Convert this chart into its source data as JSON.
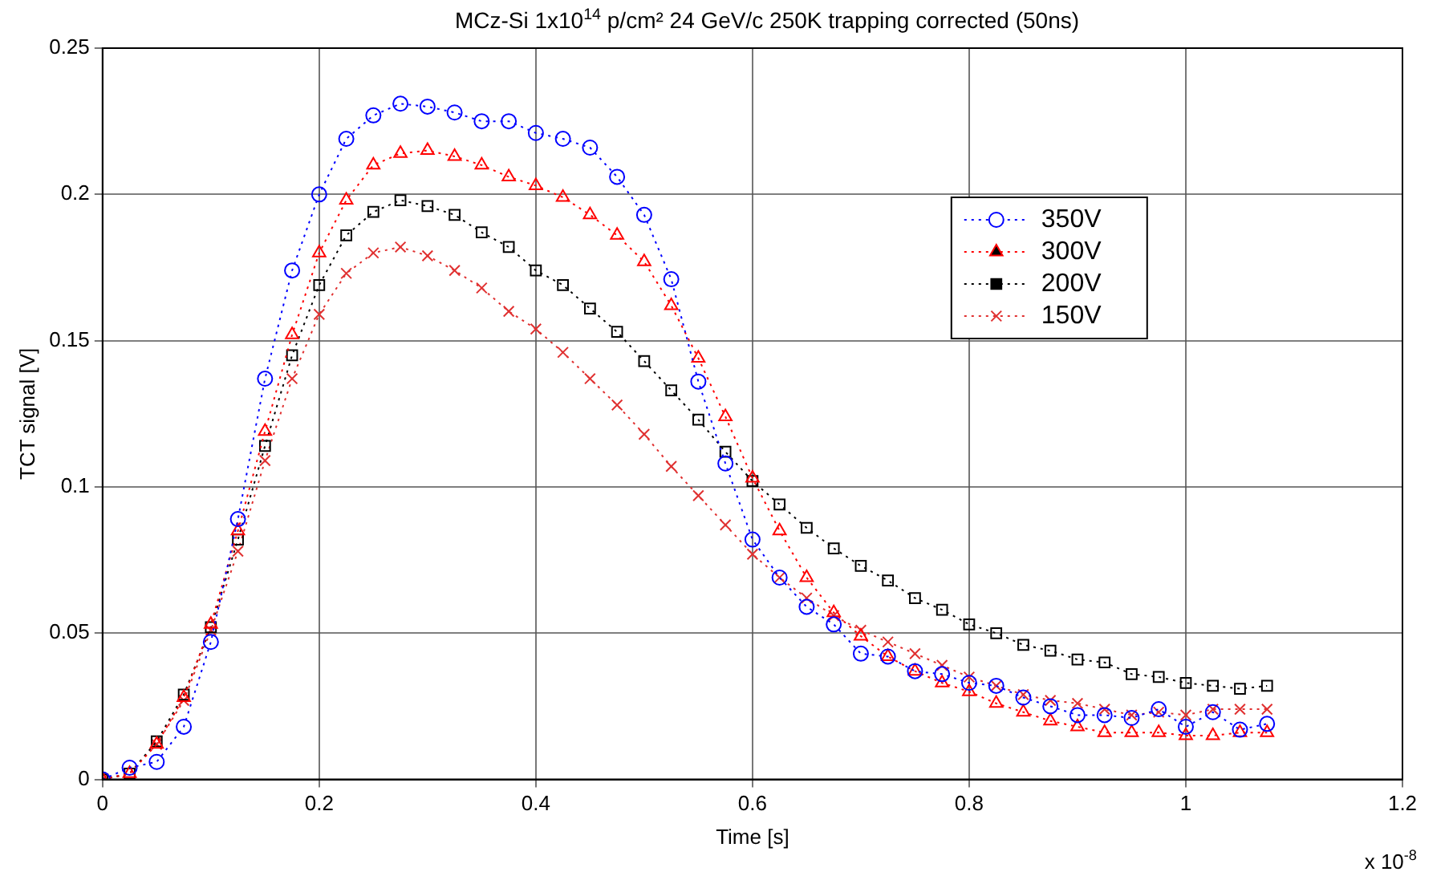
{
  "chart_data": {
    "type": "line",
    "title": "MCz-Si 1x10$^{14}$ p/cm² 24 GeV/c 250K trapping corrected (50ns)",
    "xlabel": "Time [s]",
    "ylabel": "TCT signal [V]",
    "annotations": [
      "x 10$^{-8}$"
    ],
    "x": [
      0,
      0.025,
      0.05,
      0.075,
      0.1,
      0.125,
      0.15,
      0.175,
      0.2,
      0.225,
      0.25,
      0.275,
      0.3,
      0.325,
      0.35,
      0.375,
      0.4,
      0.425,
      0.45,
      0.475,
      0.5,
      0.525,
      0.55,
      0.575,
      0.6,
      0.625,
      0.65,
      0.675,
      0.7,
      0.725,
      0.75,
      0.775,
      0.8,
      0.825,
      0.85,
      0.875,
      0.9,
      0.925,
      0.95,
      0.975,
      1.0,
      1.025,
      1.05,
      1.075
    ],
    "series": [
      {
        "name": "350V",
        "color": "#0000ff",
        "marker": "circle",
        "values": [
          0,
          0.004,
          0.006,
          0.018,
          0.047,
          0.089,
          0.137,
          0.174,
          0.2,
          0.219,
          0.227,
          0.231,
          0.23,
          0.228,
          0.225,
          0.225,
          0.221,
          0.219,
          0.216,
          0.206,
          0.193,
          0.171,
          0.136,
          0.108,
          0.082,
          0.069,
          0.059,
          0.053,
          0.043,
          0.042,
          0.037,
          0.036,
          0.033,
          0.032,
          0.028,
          0.025,
          0.022,
          0.022,
          0.021,
          0.024,
          0.018,
          0.023,
          0.017,
          0.019
        ]
      },
      {
        "name": "300V",
        "color": "#ff0000",
        "marker": "triangle",
        "values": [
          0,
          0.002,
          0.012,
          0.028,
          0.053,
          0.085,
          0.119,
          0.152,
          0.18,
          0.198,
          0.21,
          0.214,
          0.215,
          0.213,
          0.21,
          0.206,
          0.203,
          0.199,
          0.193,
          0.186,
          0.177,
          0.162,
          0.144,
          0.124,
          0.103,
          0.085,
          0.069,
          0.057,
          0.049,
          0.042,
          0.037,
          0.033,
          0.03,
          0.026,
          0.023,
          0.02,
          0.018,
          0.016,
          0.016,
          0.016,
          0.015,
          0.015,
          0.016,
          0.016
        ]
      },
      {
        "name": "200V",
        "color": "#000000",
        "marker": "square",
        "values": [
          0,
          0.002,
          0.013,
          0.029,
          0.052,
          0.082,
          0.114,
          0.145,
          0.169,
          0.186,
          0.194,
          0.198,
          0.196,
          0.193,
          0.187,
          0.182,
          0.174,
          0.169,
          0.161,
          0.153,
          0.143,
          0.133,
          0.123,
          0.112,
          0.102,
          0.094,
          0.086,
          0.079,
          0.073,
          0.068,
          0.062,
          0.058,
          0.053,
          0.05,
          0.046,
          0.044,
          0.041,
          0.04,
          0.036,
          0.035,
          0.033,
          0.032,
          0.031,
          0.032
        ]
      },
      {
        "name": "150V",
        "color": "#e03030",
        "marker": "cross",
        "values": [
          0,
          null,
          0.012,
          0.027,
          0.051,
          0.078,
          0.109,
          0.137,
          0.159,
          0.173,
          0.18,
          0.182,
          0.179,
          0.174,
          0.168,
          0.16,
          0.154,
          0.146,
          0.137,
          0.128,
          0.118,
          0.107,
          0.097,
          0.087,
          0.077,
          0.069,
          0.062,
          0.056,
          0.051,
          0.047,
          0.043,
          0.039,
          0.035,
          0.032,
          0.029,
          0.027,
          0.026,
          0.024,
          0.022,
          0.023,
          0.022,
          0.024,
          0.024,
          0.024
        ]
      }
    ],
    "xlim": [
      0,
      1.2
    ],
    "xticks": [
      0,
      0.2,
      0.4,
      0.6,
      0.8,
      1,
      1.2
    ],
    "ylim": [
      0,
      0.25
    ],
    "yticks": [
      0,
      0.05,
      0.1,
      0.15,
      0.2,
      0.25
    ],
    "grid": true,
    "legend": "top right",
    "line_style": "dotted"
  }
}
